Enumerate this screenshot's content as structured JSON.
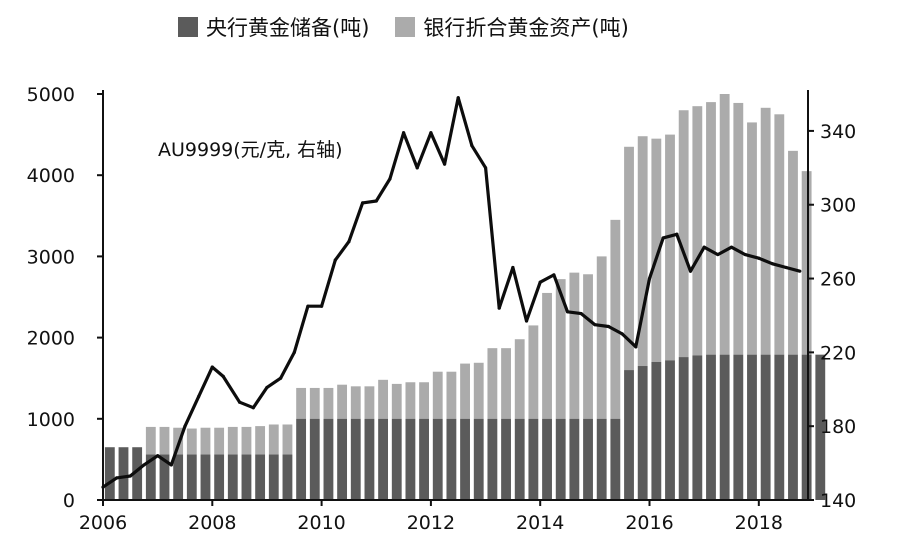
{
  "legend": {
    "central_bank": "央行黄金储备(吨)",
    "bank_gold": "银行折合黄金资产(吨)"
  },
  "colors": {
    "central_bank": "#5b5b5b",
    "bank_gold": "#ababab",
    "line": "#0d0d0d"
  },
  "chart_data": {
    "type": "bar",
    "annotation": "AU9999(元/克, 右轴)",
    "x_axis": {
      "min": 2006,
      "max": 2018.9,
      "ticks": [
        2006,
        2008,
        2010,
        2012,
        2014,
        2016,
        2018
      ]
    },
    "y_left": {
      "min": 0,
      "max": 5000,
      "ticks": [
        0,
        1000,
        2000,
        3000,
        4000,
        5000
      ]
    },
    "y_right": {
      "min": 140,
      "max": 360,
      "ticks": [
        140,
        180,
        220,
        260,
        300,
        340
      ]
    },
    "bars": {
      "start": 2006.0,
      "step": 0.25,
      "central_bank": [
        650,
        650,
        650,
        560,
        560,
        560,
        560,
        560,
        560,
        560,
        560,
        560,
        560,
        560,
        1000,
        1000,
        1000,
        1000,
        1000,
        1000,
        1000,
        1000,
        1000,
        1000,
        1000,
        1000,
        1000,
        1000,
        1000,
        1000,
        1000,
        1000,
        1000,
        1000,
        1000,
        1000,
        1000,
        1000,
        1600,
        1650,
        1700,
        1720,
        1760,
        1780,
        1790,
        1790,
        1790,
        1790,
        1790,
        1790,
        1790,
        1790,
        1790
      ],
      "bank_gold": [
        0,
        0,
        0,
        900,
        900,
        890,
        880,
        890,
        890,
        900,
        900,
        910,
        930,
        930,
        1380,
        1380,
        1380,
        1420,
        1400,
        1400,
        1480,
        1430,
        1450,
        1450,
        1580,
        1580,
        1680,
        1690,
        1870,
        1870,
        1980,
        2150,
        2550,
        2720,
        2800,
        2780,
        3000,
        3450,
        4350,
        4480,
        4450,
        4500,
        4800,
        4850,
        4900,
        5000,
        4890,
        4650,
        4830,
        4750,
        4300,
        4050,
        0
      ]
    },
    "line": {
      "x": [
        2006.0,
        2006.25,
        2006.5,
        2006.75,
        2007.0,
        2007.25,
        2007.5,
        2007.75,
        2008.0,
        2008.2,
        2008.5,
        2008.75,
        2009.0,
        2009.25,
        2009.5,
        2009.75,
        2010.0,
        2010.25,
        2010.5,
        2010.75,
        2011.0,
        2011.25,
        2011.5,
        2011.75,
        2012.0,
        2012.25,
        2012.5,
        2012.75,
        2013.0,
        2013.25,
        2013.5,
        2013.75,
        2014.0,
        2014.25,
        2014.5,
        2014.75,
        2015.0,
        2015.25,
        2015.5,
        2015.75,
        2016.0,
        2016.25,
        2016.5,
        2016.75,
        2017.0,
        2017.25,
        2017.5,
        2017.75,
        2018.0,
        2018.25,
        2018.5,
        2018.75
      ],
      "y": [
        147,
        152,
        153,
        159,
        164,
        159,
        180,
        196,
        212,
        207,
        193,
        190,
        201,
        206,
        220,
        245,
        245,
        270,
        280,
        301,
        302,
        314,
        339,
        320,
        339,
        322,
        358,
        332,
        320,
        244,
        266,
        237,
        258,
        262,
        242,
        241,
        235,
        234,
        230,
        223,
        260,
        282,
        284,
        264,
        277,
        273,
        277,
        273,
        271,
        268,
        266,
        264
      ]
    }
  }
}
